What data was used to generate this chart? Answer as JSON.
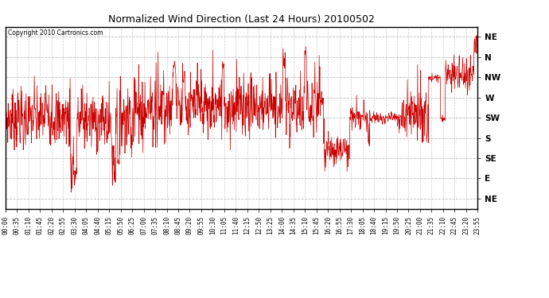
{
  "title": "Normalized Wind Direction (Last 24 Hours) 20100502",
  "copyright": "Copyright 2010 Cartronics.com",
  "line_color": "#cc0000",
  "bg_color": "#ffffff",
  "plot_bg_color": "#ffffff",
  "grid_color": "#aaaaaa",
  "border_color": "#000000",
  "ytick_labels": [
    "NE",
    "N",
    "NW",
    "W",
    "SW",
    "S",
    "SE",
    "E",
    "NE"
  ],
  "ytick_values": [
    9,
    8,
    7,
    6,
    5,
    4,
    3,
    2,
    1
  ],
  "ylim": [
    0.5,
    9.5
  ],
  "xtick_labels": [
    "00:00",
    "00:35",
    "01:10",
    "01:45",
    "02:20",
    "02:55",
    "03:30",
    "04:05",
    "04:40",
    "05:15",
    "05:50",
    "06:25",
    "07:00",
    "07:35",
    "08:10",
    "08:45",
    "09:20",
    "09:55",
    "10:30",
    "11:05",
    "11:40",
    "12:15",
    "12:50",
    "13:25",
    "14:00",
    "14:35",
    "15:10",
    "15:45",
    "16:20",
    "16:55",
    "17:30",
    "18:05",
    "18:40",
    "19:15",
    "19:50",
    "20:25",
    "21:00",
    "21:35",
    "22:10",
    "22:45",
    "23:20",
    "23:55"
  ],
  "figsize": [
    6.9,
    3.75
  ],
  "dpi": 100
}
